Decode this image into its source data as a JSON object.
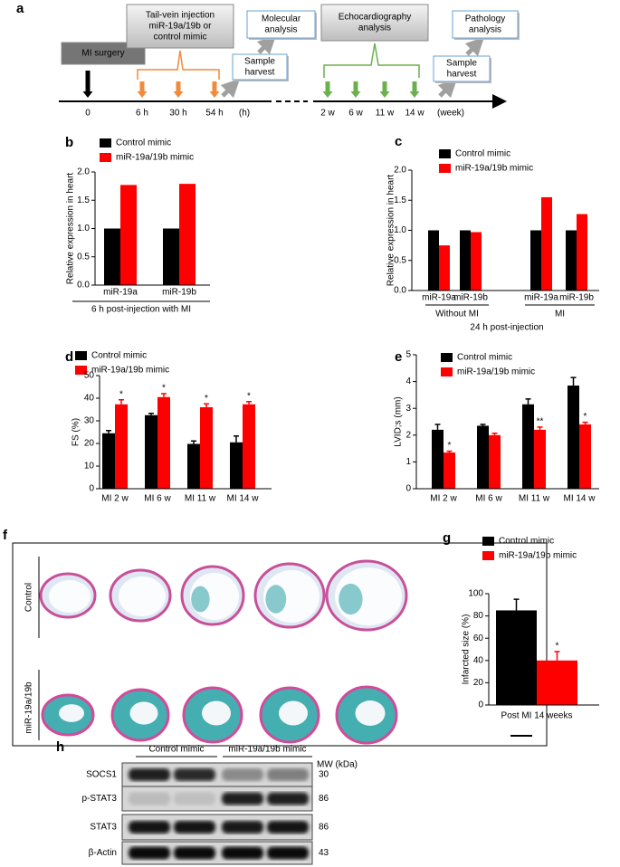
{
  "panel_a": {
    "label": "a",
    "boxes": [
      [
        "MI surgery"
      ],
      [
        "Tail-vein injection",
        "miR-19a/19b or",
        "control mimic"
      ],
      [
        "Molecular",
        "analysis"
      ],
      [
        "Sample",
        "harvest"
      ],
      [
        "Echocardiography",
        "analysis"
      ],
      [
        "Pathology",
        "analysis"
      ],
      [
        "Sample",
        "harvest"
      ]
    ],
    "timeline": [
      "0",
      "6 h",
      "30 h",
      "54 h",
      "(h)",
      "2 w",
      "6 w",
      "11 w",
      "14 w",
      "(week)"
    ]
  },
  "chart_data": [
    {
      "panel": "b",
      "type": "bar",
      "ylabel": "Relative expression in heart",
      "categories": [
        "miR-19a",
        "miR-19b"
      ],
      "group_label": "6 h post-injection with MI",
      "series": [
        {
          "name": "Control mimic",
          "color": "#000000",
          "values": [
            1,
            1
          ]
        },
        {
          "name": "miR-19a/19b mimic",
          "color": "#ff0000",
          "values": [
            1.77,
            1.79
          ]
        }
      ],
      "ylim": [
        0,
        2
      ],
      "yticks": [
        {
          "value": 0,
          "label": "0.0"
        },
        0.5,
        {
          "value": 1,
          "label": "1.0"
        },
        1.5,
        {
          "value": 2,
          "label": "2.0"
        }
      ]
    },
    {
      "panel": "c",
      "type": "bar",
      "ylabel": "Relative expression in heart",
      "categories": [
        "miR-19a",
        "miR-19b",
        "miR-19a",
        "miR-19b"
      ],
      "groups": [
        "Without MI",
        "MI"
      ],
      "xlabel": "24 h post-injection",
      "series": [
        {
          "name": "Control mimic",
          "color": "#000000",
          "values": [
            1,
            1,
            1,
            1
          ]
        },
        {
          "name": "miR-19a/19b mimic",
          "color": "#ff0000",
          "values": [
            0.75,
            0.97,
            1.55,
            1.27
          ]
        }
      ],
      "ylim": [
        0,
        2
      ],
      "yticks": [
        {
          "value": 0,
          "label": "0.0"
        },
        0.5,
        {
          "value": 1,
          "label": "1.0"
        },
        1.5,
        {
          "value": 2,
          "label": "2.0"
        }
      ]
    },
    {
      "panel": "d",
      "type": "bar",
      "ylabel": "FS (%)",
      "categories": [
        "MI 2 w",
        "MI 6 w",
        "MI 11 w",
        "MI 14 w"
      ],
      "series": [
        {
          "name": "Control mimic",
          "color": "#000000",
          "values": [
            24.5,
            32.5,
            19.8,
            20.5
          ],
          "errors": [
            1.2,
            0.8,
            1.3,
            2.8
          ]
        },
        {
          "name": "miR-19a/19b mimic",
          "color": "#ff0000",
          "values": [
            37.3,
            40.5,
            36,
            37.3
          ],
          "errors": [
            2,
            1.5,
            1.5,
            1.2
          ],
          "annotations": [
            "*",
            "*",
            "*",
            "*"
          ]
        }
      ],
      "ylim": [
        0,
        50
      ],
      "yticks": [
        0,
        10,
        20,
        30,
        40,
        50
      ]
    },
    {
      "panel": "e",
      "type": "bar",
      "ylabel": "LVID;s (mm)",
      "categories": [
        "MI 2 w",
        "MI 6 w",
        "MI 11 w",
        "MI 14 w"
      ],
      "series": [
        {
          "name": "Control mimic",
          "color": "#000000",
          "values": [
            2.2,
            2.35,
            3.15,
            3.85
          ],
          "errors": [
            0.2,
            0.05,
            0.2,
            0.3
          ]
        },
        {
          "name": "miR-19a/19b mimic",
          "color": "#ff0000",
          "values": [
            1.35,
            2.0,
            2.2,
            2.4
          ],
          "errors": [
            0.05,
            0.07,
            0.1,
            0.08
          ],
          "annotations": [
            "*",
            null,
            "**",
            "*"
          ]
        }
      ],
      "ylim": [
        0,
        5
      ],
      "yticks": [
        0,
        1,
        2,
        3,
        4,
        5
      ]
    },
    {
      "panel": "g",
      "type": "bar",
      "ylabel": "Infarcted size (%)",
      "categories": [
        "Post MI 14 weeks"
      ],
      "series": [
        {
          "name": "Control mimic",
          "color": "#000000",
          "values": [
            85
          ],
          "errors": [
            10
          ]
        },
        {
          "name": "miR-19a/19b mimic",
          "color": "#ff0000",
          "values": [
            40
          ],
          "errors": [
            8
          ],
          "annotations": [
            "*"
          ]
        }
      ],
      "ylim": [
        0,
        100
      ],
      "yticks": [
        0,
        20,
        40,
        60,
        80,
        100
      ]
    }
  ],
  "panel_f": {
    "label": "f",
    "rows": [
      "Control",
      "miR-19a/19b"
    ]
  },
  "panel_h": {
    "label": "h",
    "groups": [
      "Control mimic",
      "miR-19a/19b mimic"
    ],
    "mw_header": "MW (kDa)",
    "rows": [
      {
        "protein": "SOCS1",
        "mw": 30
      },
      {
        "protein": "p-STAT3",
        "mw": 86
      },
      {
        "protein": "STAT3",
        "mw": 86
      },
      {
        "protein": "β-Actin",
        "mw": 43
      }
    ]
  }
}
